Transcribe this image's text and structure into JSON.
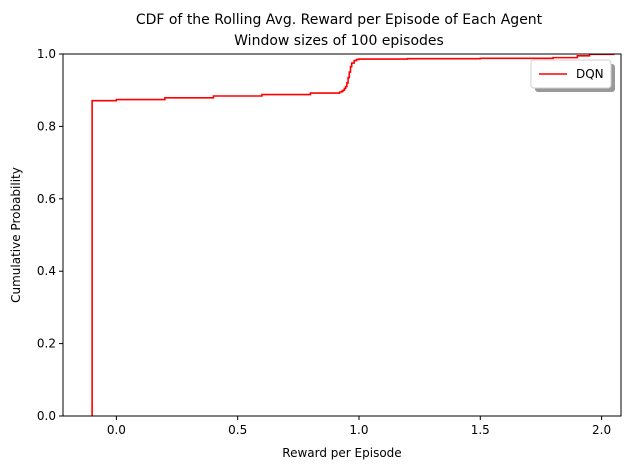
{
  "chart_data": {
    "type": "line",
    "title": "CDF of the Rolling Avg. Reward per Episode of Each Agent",
    "subtitle": "Window sizes of 100 episodes",
    "xlabel": "Reward per Episode",
    "ylabel": "Cumulative Probability",
    "xlim": [
      -0.22,
      2.08
    ],
    "ylim": [
      0,
      1.0
    ],
    "x_ticks": [
      0.0,
      0.5,
      1.0,
      1.5,
      2.0
    ],
    "x_tick_labels": [
      "0.0",
      "0.5",
      "1.0",
      "1.5",
      "2.0"
    ],
    "y_ticks": [
      0.0,
      0.2,
      0.4,
      0.6,
      0.8,
      1.0
    ],
    "y_tick_labels": [
      "0.0",
      "0.2",
      "0.4",
      "0.6",
      "0.8",
      "1.0"
    ],
    "grid": false,
    "legend_position": "upper-right",
    "series": [
      {
        "name": "DQN",
        "color": "#ff0000",
        "step": true,
        "x": [
          -0.1,
          -0.1,
          -0.1,
          0.0,
          0.2,
          0.4,
          0.6,
          0.8,
          0.92,
          0.93,
          0.935,
          0.94,
          0.945,
          0.95,
          0.955,
          0.96,
          0.965,
          0.97,
          0.98,
          0.99,
          1.0,
          1.2,
          1.5,
          1.8,
          1.9,
          1.95,
          2.05
        ],
        "y": [
          0.0,
          0.87,
          0.871,
          0.874,
          0.879,
          0.884,
          0.888,
          0.892,
          0.895,
          0.898,
          0.9,
          0.905,
          0.91,
          0.92,
          0.935,
          0.95,
          0.965,
          0.975,
          0.982,
          0.985,
          0.986,
          0.987,
          0.988,
          0.99,
          0.995,
          0.999,
          1.0
        ]
      }
    ]
  }
}
